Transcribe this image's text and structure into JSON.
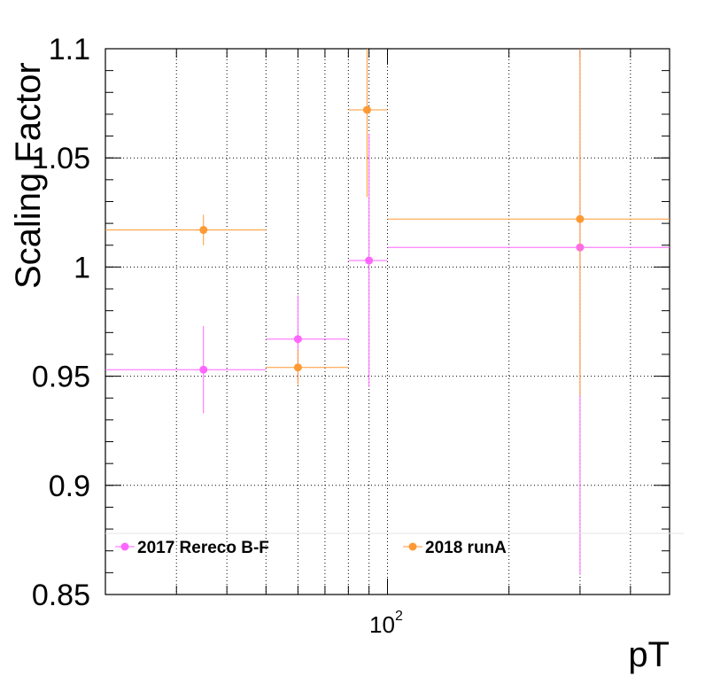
{
  "chart_data": {
    "type": "scatter",
    "title": "",
    "xlabel": "pT",
    "ylabel": "Scaling Factor",
    "xscale": "log",
    "xlim": [
      20,
      500
    ],
    "ylim": [
      0.85,
      1.1
    ],
    "grid": true,
    "y_ticks": [
      {
        "value": 0.85,
        "label": "0.85"
      },
      {
        "value": 0.9,
        "label": "0.9"
      },
      {
        "value": 0.95,
        "label": "0.95"
      },
      {
        "value": 1.0,
        "label": "1"
      },
      {
        "value": 1.05,
        "label": "1.05"
      },
      {
        "value": 1.1,
        "label": "1.1"
      }
    ],
    "x_tick_label": {
      "base": "10",
      "exponent": "2"
    },
    "legend_position": "bottom",
    "series": [
      {
        "name": "2017 Rereco B-F",
        "color": "#ff66ff",
        "points": [
          {
            "x": 35,
            "xlo": 20,
            "xhi": 50,
            "y": 0.953,
            "yerr": 0.02
          },
          {
            "x": 60,
            "xlo": 50,
            "xhi": 80,
            "y": 0.967,
            "yerr": 0.02
          },
          {
            "x": 90,
            "xlo": 80,
            "xhi": 100,
            "y": 1.003,
            "yerr": 0.058
          },
          {
            "x": 300,
            "xlo": 100,
            "xhi": 500,
            "y": 1.009,
            "yerr": 0.15
          }
        ]
      },
      {
        "name": "2018 runA",
        "color": "#ff9933",
        "points": [
          {
            "x": 35,
            "xlo": 20,
            "xhi": 50,
            "y": 1.017,
            "yerr": 0.007
          },
          {
            "x": 60,
            "xlo": 50,
            "xhi": 80,
            "y": 0.954,
            "yerr": 0.008
          },
          {
            "x": 89,
            "xlo": 80,
            "xhi": 100,
            "y": 1.072,
            "yerr": 0.04
          },
          {
            "x": 300,
            "xlo": 100,
            "xhi": 500,
            "y": 1.022,
            "yerr": 0.081
          }
        ]
      }
    ]
  }
}
